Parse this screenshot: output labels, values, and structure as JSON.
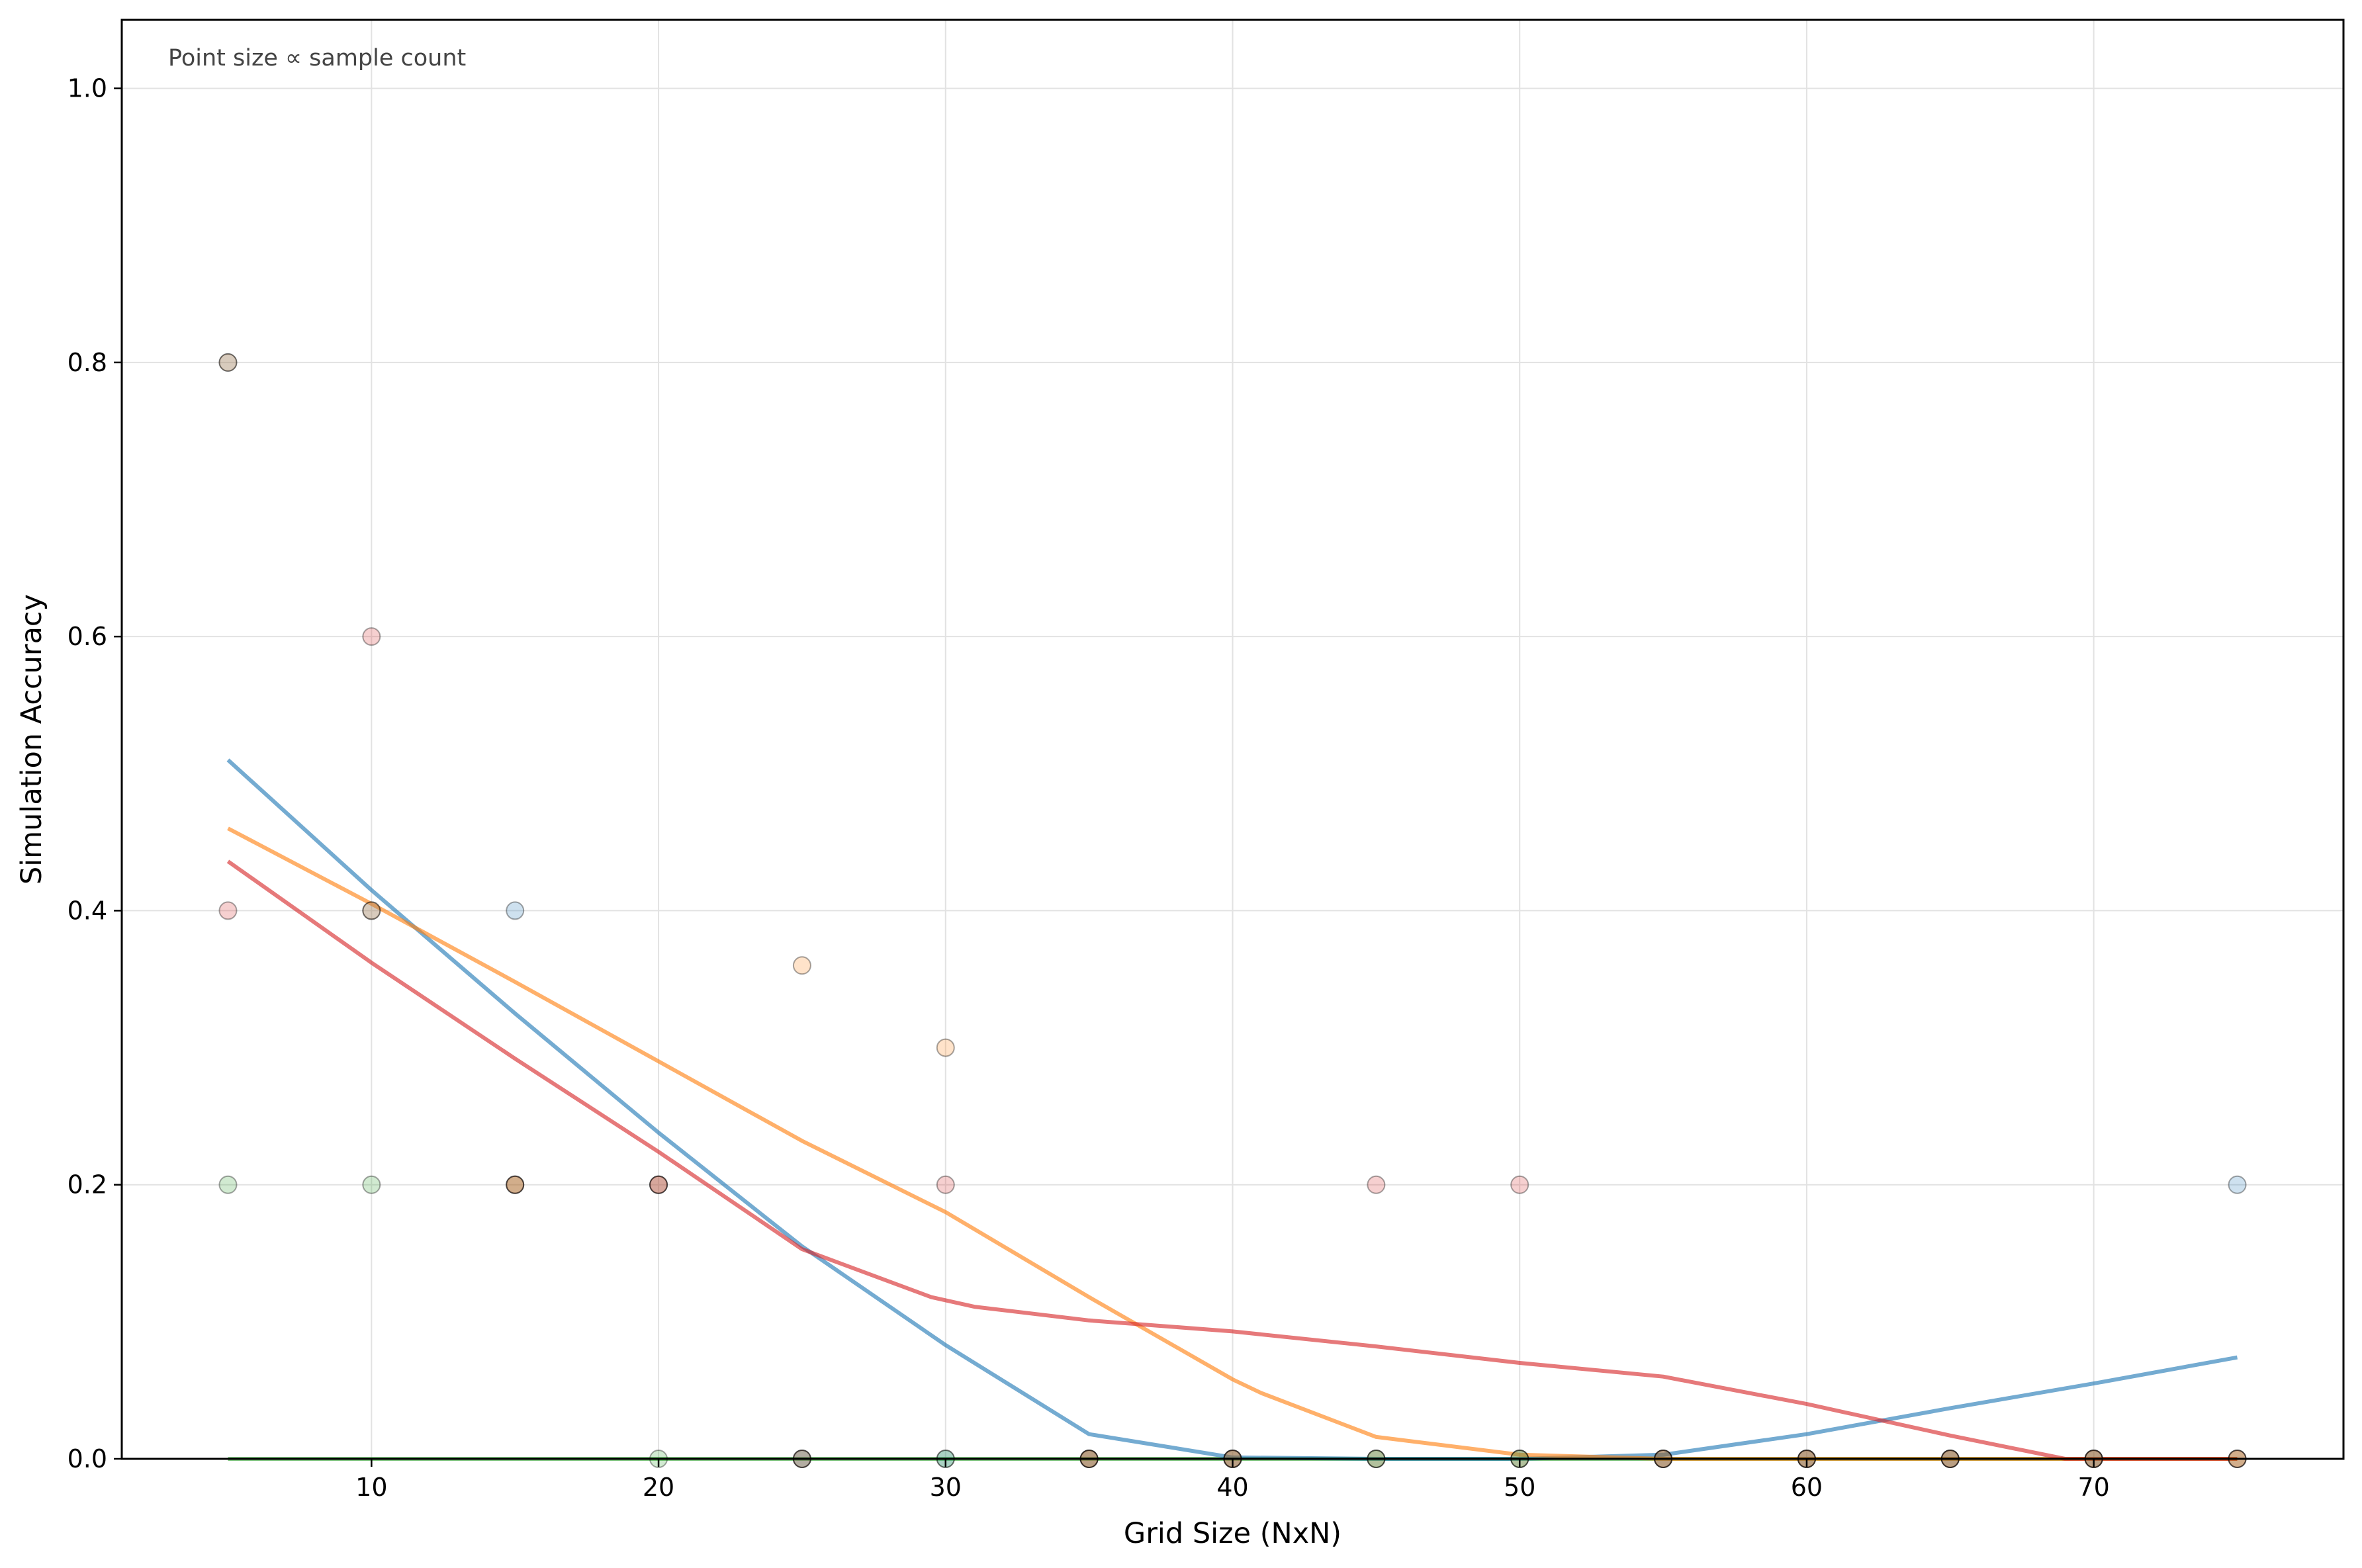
{
  "chart_data": {
    "type": "scatter",
    "title": "",
    "xlabel": "Grid Size (NxN)",
    "ylabel": "Simulation Accuracy",
    "annotation": "Point size ∝ sample count",
    "xlim": [
      1.3,
      78.7
    ],
    "ylim": [
      0.0,
      1.05
    ],
    "xticks": [
      "10",
      "20",
      "30",
      "40",
      "50",
      "60",
      "70"
    ],
    "yticks": [
      "0.0",
      "0.2",
      "0.4",
      "0.6",
      "0.8",
      "1.0"
    ],
    "grid": true,
    "legend": "none",
    "series": [
      {
        "color": "#1f77b4",
        "points": [
          [
            5,
            0.8
          ],
          [
            10,
            0.4
          ],
          [
            15,
            0.4
          ],
          [
            20,
            0.2
          ],
          [
            25,
            0.0
          ],
          [
            30,
            0.0
          ],
          [
            35,
            0.0
          ],
          [
            40,
            0.0
          ],
          [
            45,
            0.0
          ],
          [
            50,
            0.0
          ],
          [
            55,
            0.0
          ],
          [
            60,
            0.0
          ],
          [
            65,
            0.0
          ],
          [
            70,
            0.0
          ],
          [
            75,
            0.2
          ]
        ],
        "trend": [
          [
            5,
            0.51
          ],
          [
            10,
            0.415
          ],
          [
            15,
            0.325
          ],
          [
            20,
            0.238
          ],
          [
            25,
            0.155
          ],
          [
            30,
            0.083
          ],
          [
            35,
            0.018
          ],
          [
            40,
            0.001
          ],
          [
            45,
            0.0
          ],
          [
            50,
            0.0
          ],
          [
            55,
            0.003
          ],
          [
            60,
            0.018
          ],
          [
            65,
            0.037
          ],
          [
            70,
            0.055
          ],
          [
            75,
            0.074
          ]
        ]
      },
      {
        "color": "#ff7f0e",
        "points": [
          [
            5,
            0.8
          ],
          [
            10,
            0.4
          ],
          [
            15,
            0.2
          ],
          [
            20,
            0.2
          ],
          [
            25,
            0.36
          ],
          [
            30,
            0.3
          ],
          [
            35,
            0.0
          ],
          [
            40,
            0.0
          ],
          [
            45,
            0.0
          ],
          [
            50,
            0.0
          ],
          [
            55,
            0.0
          ],
          [
            60,
            0.0
          ],
          [
            65,
            0.0
          ],
          [
            70,
            0.0
          ],
          [
            75,
            0.0
          ]
        ],
        "trend": [
          [
            5,
            0.46
          ],
          [
            10,
            0.405
          ],
          [
            15,
            0.348
          ],
          [
            20,
            0.29
          ],
          [
            25,
            0.232
          ],
          [
            30,
            0.18
          ],
          [
            35,
            0.118
          ],
          [
            40,
            0.058
          ],
          [
            41,
            0.048
          ],
          [
            45,
            0.016
          ],
          [
            50,
            0.003
          ],
          [
            55,
            0.0
          ],
          [
            60,
            0.0
          ],
          [
            65,
            0.0
          ],
          [
            70,
            0.0
          ],
          [
            75,
            0.0
          ]
        ]
      },
      {
        "color": "#2ca02c",
        "points": [
          [
            5,
            0.2
          ],
          [
            10,
            0.2
          ],
          [
            15,
            0.2
          ],
          [
            20,
            0.0
          ],
          [
            25,
            0.0
          ],
          [
            30,
            0.0
          ],
          [
            35,
            0.0
          ],
          [
            40,
            0.0
          ],
          [
            45,
            0.0
          ],
          [
            50,
            0.0
          ],
          [
            55,
            0.0
          ],
          [
            60,
            0.0
          ],
          [
            65,
            0.0
          ],
          [
            70,
            0.0
          ],
          [
            75,
            0.0
          ]
        ],
        "trend": [
          [
            5,
            0.0
          ],
          [
            75,
            0.0
          ]
        ]
      },
      {
        "color": "#d62728",
        "points": [
          [
            5,
            0.4
          ],
          [
            10,
            0.6
          ],
          [
            15,
            0.2
          ],
          [
            20,
            0.2
          ],
          [
            25,
            0.0
          ],
          [
            30,
            0.2
          ],
          [
            35,
            0.0
          ],
          [
            40,
            0.0
          ],
          [
            45,
            0.2
          ],
          [
            50,
            0.2
          ],
          [
            55,
            0.0
          ],
          [
            60,
            0.0
          ],
          [
            65,
            0.0
          ],
          [
            70,
            0.0
          ],
          [
            75,
            0.0
          ]
        ],
        "trend": [
          [
            5,
            0.436
          ],
          [
            10,
            0.362
          ],
          [
            15,
            0.292
          ],
          [
            20,
            0.224
          ],
          [
            25,
            0.153
          ],
          [
            29.5,
            0.118
          ],
          [
            31,
            0.111
          ],
          [
            35,
            0.101
          ],
          [
            40,
            0.093
          ],
          [
            45,
            0.082
          ],
          [
            50,
            0.07
          ],
          [
            55,
            0.06
          ],
          [
            60,
            0.04
          ],
          [
            65,
            0.017
          ],
          [
            69,
            0.0
          ],
          [
            75,
            0.0
          ]
        ]
      }
    ]
  }
}
